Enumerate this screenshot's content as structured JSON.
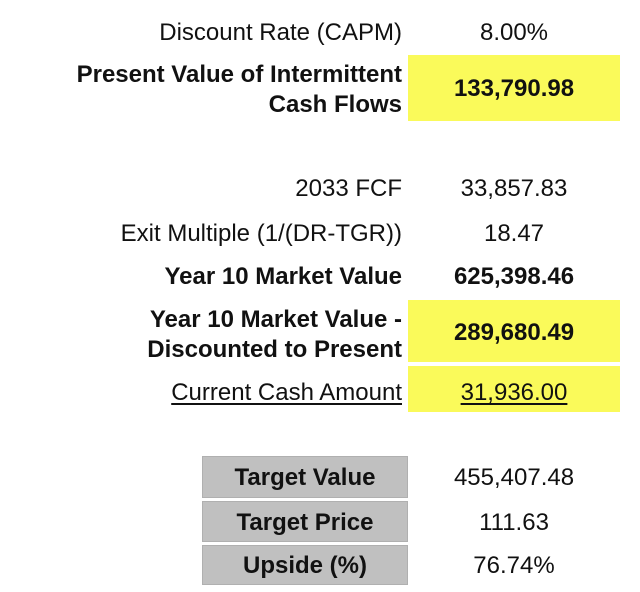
{
  "rows": {
    "discount_rate": {
      "label": "Discount Rate (CAPM)",
      "value": "8.00%"
    },
    "pv_intermittent": {
      "label_line1": "Present Value of Intermittent",
      "label_line2": "Cash Flows",
      "value": "133,790.98"
    },
    "fcf_2033": {
      "label": "2033 FCF",
      "value": "33,857.83"
    },
    "exit_multiple": {
      "label": "Exit Multiple (1/(DR-TGR))",
      "value": "18.47"
    },
    "year10_mv": {
      "label": "Year 10 Market Value",
      "value": "625,398.46"
    },
    "year10_discounted": {
      "label_line1": "Year 10 Market Value -",
      "label_line2": "Discounted to Present",
      "value": "289,680.49"
    },
    "current_cash": {
      "label": "Current Cash Amount",
      "value": "31,936.00"
    }
  },
  "summary": {
    "target_value": {
      "label": "Target Value",
      "value": "455,407.48"
    },
    "target_price": {
      "label": "Target Price",
      "value": "111.63"
    },
    "upside": {
      "label": "Upside (%)",
      "value": "76.74%"
    }
  },
  "colors": {
    "highlight": "#fafa5a",
    "summary_cell": "#c0c0c0"
  }
}
